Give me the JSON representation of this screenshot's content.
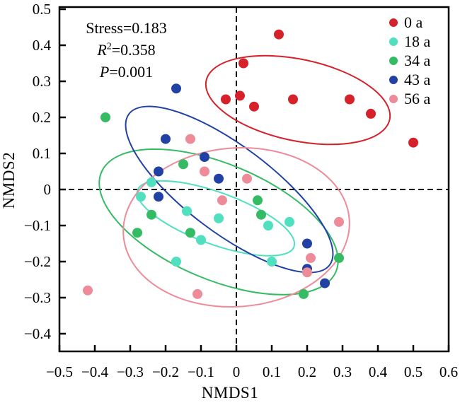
{
  "figure": {
    "background": "#ffffff",
    "annotation": {
      "stress": "Stress=0.183",
      "r2_var": "R",
      "r2_sup": "2",
      "r2_eq": "=0.358",
      "p_var": "P",
      "p_eq": "=0.001"
    }
  },
  "chart_data": {
    "type": "scatter",
    "title": "",
    "xlabel": "NMDS1",
    "ylabel": "NMDS2",
    "xlim": [
      -0.5,
      0.6
    ],
    "ylim": [
      -0.45,
      0.505
    ],
    "grid": false,
    "zero_lines": "dashed",
    "legend_position": "top-right-inside",
    "stats": {
      "stress": 0.183,
      "r2": 0.358,
      "p": 0.001
    },
    "x_ticks": [
      {
        "v": -0.5,
        "label": "−0.5"
      },
      {
        "v": -0.4,
        "label": "−0.4"
      },
      {
        "v": -0.3,
        "label": "−0.3"
      },
      {
        "v": -0.2,
        "label": "−0.2"
      },
      {
        "v": -0.1,
        "label": "−0.1"
      },
      {
        "v": 0,
        "label": "0"
      },
      {
        "v": 0.1,
        "label": "0.1"
      },
      {
        "v": 0.2,
        "label": "0.2"
      },
      {
        "v": 0.3,
        "label": "0.3"
      },
      {
        "v": 0.4,
        "label": "0.4"
      },
      {
        "v": 0.5,
        "label": "0.5"
      },
      {
        "v": 0.6,
        "label": "0.6"
      }
    ],
    "y_ticks": [
      {
        "v": 0.5,
        "label": "0.5"
      },
      {
        "v": 0.4,
        "label": "0.4"
      },
      {
        "v": 0.3,
        "label": "0.3"
      },
      {
        "v": 0.2,
        "label": "0.2"
      },
      {
        "v": 0.1,
        "label": "0.1"
      },
      {
        "v": 0,
        "label": "0"
      },
      {
        "v": -0.1,
        "label": "−0.1"
      },
      {
        "v": -0.2,
        "label": "−0.2"
      },
      {
        "v": -0.3,
        "label": "−0.3"
      },
      {
        "v": -0.4,
        "label": "−0.4"
      }
    ],
    "series": [
      {
        "name": "0 a",
        "color": "#d6212b",
        "points": [
          [
            0.12,
            0.43
          ],
          [
            0.02,
            0.35
          ],
          [
            -0.03,
            0.25
          ],
          [
            0.01,
            0.26
          ],
          [
            0.05,
            0.23
          ],
          [
            0.16,
            0.25
          ],
          [
            0.32,
            0.25
          ],
          [
            0.38,
            0.21
          ],
          [
            0.5,
            0.13
          ]
        ],
        "ellipse": {
          "cx": 0.174,
          "cy": 0.248,
          "rx": 0.265,
          "ry": 0.113,
          "rot": 12
        }
      },
      {
        "name": "18 a",
        "color": "#50e0c0",
        "points": [
          [
            -0.24,
            0.02
          ],
          [
            -0.27,
            -0.02
          ],
          [
            -0.14,
            -0.06
          ],
          [
            -0.05,
            -0.08
          ],
          [
            -0.1,
            -0.14
          ],
          [
            -0.17,
            -0.2
          ],
          [
            0.09,
            -0.1
          ],
          [
            0.15,
            -0.09
          ],
          [
            0.1,
            -0.2
          ]
        ],
        "ellipse": {
          "cx": -0.058,
          "cy": -0.08,
          "rx": 0.235,
          "ry": 0.072,
          "rot": 20
        }
      },
      {
        "name": "34 a",
        "color": "#35bb64",
        "points": [
          [
            -0.37,
            0.2
          ],
          [
            -0.15,
            0.07
          ],
          [
            -0.24,
            -0.07
          ],
          [
            -0.28,
            -0.12
          ],
          [
            -0.13,
            -0.12
          ],
          [
            0.06,
            -0.03
          ],
          [
            0.07,
            -0.07
          ],
          [
            0.29,
            -0.19
          ],
          [
            0.19,
            -0.29
          ]
        ],
        "ellipse": {
          "cx": -0.05,
          "cy": -0.09,
          "rx": 0.36,
          "ry": 0.16,
          "rot": 23
        }
      },
      {
        "name": "43 a",
        "color": "#2141a5",
        "points": [
          [
            -0.17,
            0.28
          ],
          [
            -0.2,
            0.14
          ],
          [
            -0.09,
            0.09
          ],
          [
            -0.22,
            0.05
          ],
          [
            -0.05,
            0.03
          ],
          [
            -0.22,
            -0.02
          ],
          [
            0.2,
            -0.15
          ],
          [
            0.2,
            -0.22
          ],
          [
            0.25,
            -0.26
          ]
        ],
        "ellipse": {
          "cx": -0.02,
          "cy": 0.0,
          "rx": 0.355,
          "ry": 0.12,
          "rot": 37
        }
      },
      {
        "name": "56 a",
        "color": "#ee8b99",
        "points": [
          [
            -0.13,
            0.14
          ],
          [
            -0.09,
            0.05
          ],
          [
            0.03,
            0.03
          ],
          [
            -0.04,
            -0.03
          ],
          [
            0.29,
            -0.09
          ],
          [
            0.21,
            -0.19
          ],
          [
            0.2,
            -0.23
          ],
          [
            -0.42,
            -0.28
          ],
          [
            -0.11,
            -0.29
          ]
        ],
        "ellipse": {
          "cx": 0.0,
          "cy": -0.105,
          "rx": 0.32,
          "ry": 0.22,
          "rot": -4
        }
      }
    ]
  }
}
